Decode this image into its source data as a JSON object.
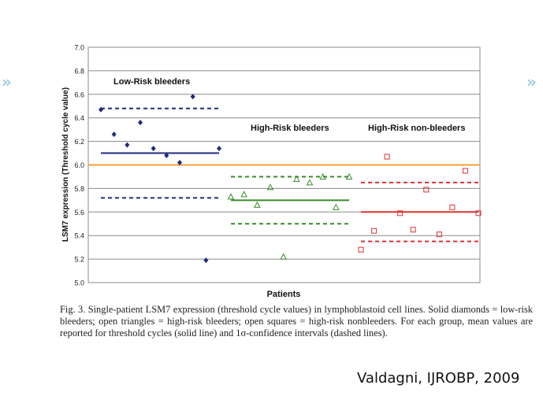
{
  "nav": {
    "prev_glyph": "»",
    "next_glyph": "»",
    "colors": {
      "arrow": "#9fcbe6"
    }
  },
  "caption": "Fig. 3.  Single-patient LSM7 expression (threshold cycle values) in lymphoblastoid cell lines. Solid diamonds = low-risk bleeders; open triangles = high-risk bleeders; open squares = high-risk nonbleeders. For each group, mean values are reported for threshold cycles (solid line) and 1σ-confidence intervals (dashed lines).",
  "citation": "Valdagni, IJROBP, 2009",
  "chart_data": {
    "type": "scatter",
    "xlabel": "Patients",
    "ylabel": "LSM7 expression (Threshold cycle value)",
    "ylim": [
      5.0,
      7.0
    ],
    "yticks": [
      "5.0",
      "5.2",
      "5.4",
      "5.6",
      "5.8",
      "6.0",
      "6.2",
      "6.4",
      "6.6",
      "6.8",
      "7.0"
    ],
    "grid": true,
    "reference_line": {
      "y": 6.0,
      "color": "#f0a030"
    },
    "groups": [
      {
        "name": "Low-Risk bleeders",
        "marker": "filled-diamond",
        "color": "#1f2a7a",
        "values": [
          6.47,
          6.26,
          6.17,
          6.36,
          6.14,
          6.08,
          6.02,
          6.58,
          5.19,
          6.14
        ],
        "mean": 6.1,
        "ci": [
          5.72,
          6.48
        ]
      },
      {
        "name": "High-Risk bleeders",
        "marker": "open-triangle",
        "color": "#3a8a2a",
        "values": [
          5.73,
          5.75,
          5.66,
          5.81,
          5.22,
          5.88,
          5.85,
          5.9,
          5.64,
          5.9
        ],
        "mean": 5.7,
        "ci": [
          5.5,
          5.9
        ]
      },
      {
        "name": "High-Risk non-bleeders",
        "marker": "open-square",
        "color": "#e03030",
        "values": [
          5.28,
          5.44,
          6.07,
          5.59,
          5.45,
          5.79,
          5.41,
          5.64,
          5.95,
          5.59
        ],
        "mean": 5.6,
        "ci": [
          5.35,
          5.85
        ]
      }
    ]
  }
}
